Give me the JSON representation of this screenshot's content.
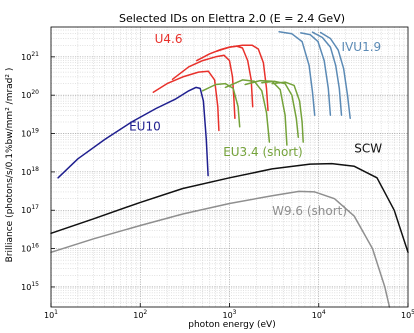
{
  "chart_data": {
    "type": "line",
    "title": "Selected IDs on Elettra 2.0 (E = 2.4 GeV)",
    "xlabel": "photon energy (eV)",
    "ylabel": "Brilliance (photons/s/0.1%bw/mm² /mrad² )",
    "xscale": "log",
    "yscale": "log",
    "xlim": [
      10,
      100000
    ],
    "ylim": [
      300000000000000,
      6000000000000000000000
    ],
    "grid": true,
    "x_ticks": [
      {
        "value": 10,
        "base": "10",
        "exp": "1"
      },
      {
        "value": 100,
        "base": "10",
        "exp": "2"
      },
      {
        "value": 1000,
        "base": "10",
        "exp": "3"
      },
      {
        "value": 10000,
        "base": "10",
        "exp": "4"
      },
      {
        "value": 100000,
        "base": "10",
        "exp": "5"
      }
    ],
    "y_ticks": [
      {
        "value": 1000000000000000.0,
        "base": "10",
        "exp": "15"
      },
      {
        "value": 1e+16,
        "base": "10",
        "exp": "16"
      },
      {
        "value": 1e+17,
        "base": "10",
        "exp": "17"
      },
      {
        "value": 1e+18,
        "base": "10",
        "exp": "18"
      },
      {
        "value": 1e+19,
        "base": "10",
        "exp": "19"
      },
      {
        "value": 1e+20,
        "base": "10",
        "exp": "20"
      },
      {
        "value": 1e+21,
        "base": "10",
        "exp": "21"
      }
    ],
    "series": [
      {
        "name": "EU10",
        "color": "#1f1f8f",
        "curves": [
          [
            [
              12,
              7e+17
            ],
            [
              20,
              2.2e+18
            ],
            [
              40,
              7e+18
            ],
            [
              80,
              2e+19
            ],
            [
              150,
              4.5e+19
            ],
            [
              250,
              8e+19
            ],
            [
              350,
              1.3e+20
            ],
            [
              420,
              1.6e+20
            ],
            [
              470,
              1.5e+20
            ],
            [
              510,
              7e+19
            ],
            [
              550,
              7e+18
            ],
            [
              575,
              8e+17
            ]
          ]
        ]
      },
      {
        "name": "U4.6",
        "color": "#e8312b",
        "curves": [
          [
            [
              140,
              1.2e+20
            ],
            [
              200,
              2e+20
            ],
            [
              300,
              3e+20
            ],
            [
              450,
              4e+20
            ],
            [
              580,
              4.2e+20
            ],
            [
              680,
              2.5e+20
            ],
            [
              740,
              5e+19
            ],
            [
              760,
              1.2e+19
            ]
          ],
          [
            [
              230,
              2.6e+20
            ],
            [
              350,
              5.5e+20
            ],
            [
              500,
              8e+20
            ],
            [
              700,
              1e+21
            ],
            [
              870,
              1.1e+21
            ],
            [
              1000,
              8e+20
            ],
            [
              1080,
              3e+20
            ],
            [
              1120,
              8e+19
            ],
            [
              1150,
              2.5e+19
            ]
          ],
          [
            [
              430,
              8e+20
            ],
            [
              600,
              1.2e+21
            ],
            [
              800,
              1.55e+21
            ],
            [
              1000,
              1.8e+21
            ],
            [
              1200,
              1.9e+21
            ],
            [
              1400,
              1.7e+21
            ],
            [
              1600,
              8e+20
            ],
            [
              1750,
              2.5e+20
            ],
            [
              1820,
              5e+19
            ]
          ],
          [
            [
              720,
              1.4e+21
            ],
            [
              1000,
              1.8e+21
            ],
            [
              1400,
              2e+21
            ],
            [
              1800,
              2e+21
            ],
            [
              2100,
              1.6e+21
            ],
            [
              2400,
              7e+20
            ],
            [
              2600,
              1.5e+20
            ],
            [
              2700,
              4e+19
            ]
          ]
        ]
      },
      {
        "name": "EU3.4 (short)",
        "color": "#74a23a",
        "curves": [
          [
            [
              500,
              1.3e+20
            ],
            [
              700,
              1.9e+20
            ],
            [
              900,
              2e+20
            ],
            [
              1100,
              1.5e+20
            ],
            [
              1250,
              5e+19
            ],
            [
              1300,
              1.5e+19
            ]
          ],
          [
            [
              900,
              1.6e+20
            ],
            [
              1400,
              2.5e+20
            ],
            [
              1900,
              2.3e+20
            ],
            [
              2300,
              1.3e+20
            ],
            [
              2600,
              3.5e+19
            ],
            [
              2800,
              6e+18
            ]
          ],
          [
            [
              1500,
              1.9e+20
            ],
            [
              2200,
              2.4e+20
            ],
            [
              3000,
              2.3e+20
            ],
            [
              3700,
              1.4e+20
            ],
            [
              4200,
              3e+19
            ],
            [
              4400,
              5e+18
            ]
          ],
          [
            [
              2300,
              2.1e+20
            ],
            [
              3200,
              2.3e+20
            ],
            [
              4200,
              2e+20
            ],
            [
              5000,
              1e+20
            ],
            [
              5600,
              2.5e+19
            ],
            [
              5900,
              8e+18
            ]
          ],
          [
            [
              3000,
              2e+20
            ],
            [
              4200,
              2.2e+20
            ],
            [
              5300,
              1.8e+20
            ],
            [
              6100,
              7e+19
            ],
            [
              6500,
              2e+19
            ],
            [
              6700,
              6e+18
            ]
          ]
        ]
      },
      {
        "name": "IVU1.9",
        "color": "#5b8ab5",
        "curves": [
          [
            [
              3600,
              4.5e+21
            ],
            [
              5000,
              4e+21
            ],
            [
              6500,
              2.5e+21
            ],
            [
              7800,
              6e+20
            ],
            [
              8500,
              1.2e+20
            ],
            [
              9000,
              3e+19
            ]
          ],
          [
            [
              6300,
              4.2e+21
            ],
            [
              8000,
              3.8e+21
            ],
            [
              9800,
              2.5e+21
            ],
            [
              11500,
              8e+20
            ],
            [
              12800,
              1.5e+20
            ],
            [
              13500,
              3e+19
            ]
          ],
          [
            [
              8500,
              4.4e+21
            ],
            [
              11000,
              3.2e+21
            ],
            [
              13500,
              1.8e+21
            ],
            [
              15500,
              6e+20
            ],
            [
              17000,
              1.5e+20
            ],
            [
              18000,
              3e+19
            ]
          ],
          [
            [
              10500,
              4.3e+21
            ],
            [
              13500,
              3e+21
            ],
            [
              16500,
              1.5e+21
            ],
            [
              19000,
              5e+20
            ],
            [
              21000,
              1e+20
            ],
            [
              22500,
              2.5e+19
            ]
          ]
        ]
      },
      {
        "name": "SCW",
        "color": "#111111",
        "curves": [
          [
            [
              10,
              2.5e+16
            ],
            [
              30,
              6e+16
            ],
            [
              100,
              1.6e+17
            ],
            [
              300,
              3.7e+17
            ],
            [
              1000,
              7e+17
            ],
            [
              3000,
              1.2e+18
            ],
            [
              8000,
              1.6e+18
            ],
            [
              14000,
              1.65e+18
            ],
            [
              25000,
              1.4e+18
            ],
            [
              45000,
              7e+17
            ],
            [
              70000,
              1e+17
            ],
            [
              100000,
              8000000000000000.0
            ]
          ]
        ]
      },
      {
        "name": "W9.6 (short)",
        "color": "#8f8f8f",
        "curves": [
          [
            [
              10,
              8000000000000000.0
            ],
            [
              30,
              1.8e+16
            ],
            [
              100,
              4e+16
            ],
            [
              300,
              8e+16
            ],
            [
              1000,
              1.5e+17
            ],
            [
              3000,
              2.4e+17
            ],
            [
              6000,
              3.1e+17
            ],
            [
              9000,
              3e+17
            ],
            [
              15000,
              2e+17
            ],
            [
              25000,
              7e+16
            ],
            [
              40000,
              1e+16
            ],
            [
              55000,
              1000000000000000.0
            ],
            [
              62000,
              300000000000000.0
            ]
          ]
        ]
      }
    ],
    "labels": [
      {
        "text": "EU10",
        "color": "#1f1f8f",
        "x": 75,
        "y": 1.2e+19
      },
      {
        "text": "U4.6",
        "color": "#e8312b",
        "x": 145,
        "y": 2.3e+21
      },
      {
        "text": "IVU1.9",
        "color": "#5b8ab5",
        "x": 18000,
        "y": 1.4e+21
      },
      {
        "text": "EU3.4 (short)",
        "color": "#74a23a",
        "x": 850,
        "y": 2.6e+18
      },
      {
        "text": "SCW",
        "color": "#111111",
        "x": 25000,
        "y": 3.2e+18
      },
      {
        "text": "W9.6 (short)",
        "color": "#8f8f8f",
        "x": 3000,
        "y": 7.5e+16
      }
    ]
  }
}
